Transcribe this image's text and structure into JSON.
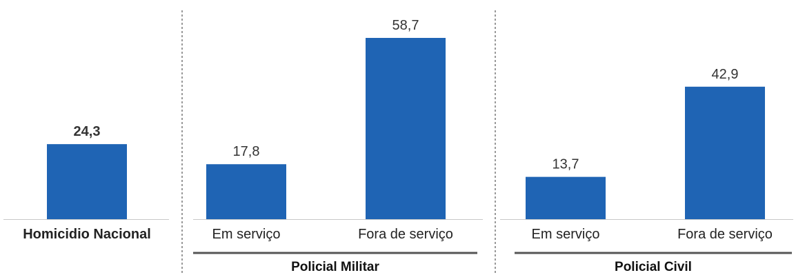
{
  "chart_data": {
    "type": "bar",
    "ylim": [
      0,
      62
    ],
    "grid": false,
    "groups": [
      {
        "label": "",
        "bars": [
          {
            "category": "Homicidio Nacional",
            "value": 24.3,
            "label": "24,3",
            "bold": true
          }
        ]
      },
      {
        "label": "Policial Militar",
        "bars": [
          {
            "category": "Em serviço",
            "value": 17.8,
            "label": "17,8",
            "bold": false
          },
          {
            "category": "Fora de serviço",
            "value": 58.7,
            "label": "58,7",
            "bold": false
          }
        ]
      },
      {
        "label": "Policial Civil",
        "bars": [
          {
            "category": "Em serviço",
            "value": 13.7,
            "label": "13,7",
            "bold": false
          },
          {
            "category": "Fora de serviço",
            "value": 42.9,
            "label": "42,9",
            "bold": false
          }
        ]
      }
    ]
  },
  "colors": {
    "bar": "#1f64b4"
  }
}
